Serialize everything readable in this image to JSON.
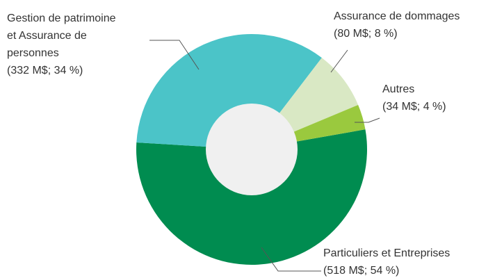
{
  "chart_data": {
    "type": "donut",
    "categories": [
      "Particuliers et Entreprises",
      "Gestion de patrimoine et Assurance de personnes",
      "Assurance de dommages",
      "Autres"
    ],
    "values": [
      518,
      332,
      80,
      34
    ],
    "value_labels": [
      "(518 M$; 54 %)",
      "(332 M$; 34 %)",
      "(80 M$; 8 %)",
      "(34 M$; 4 %)"
    ],
    "colors": [
      "#008c50",
      "#4bc4c8",
      "#d9e8c4",
      "#9ac93e"
    ]
  }
}
